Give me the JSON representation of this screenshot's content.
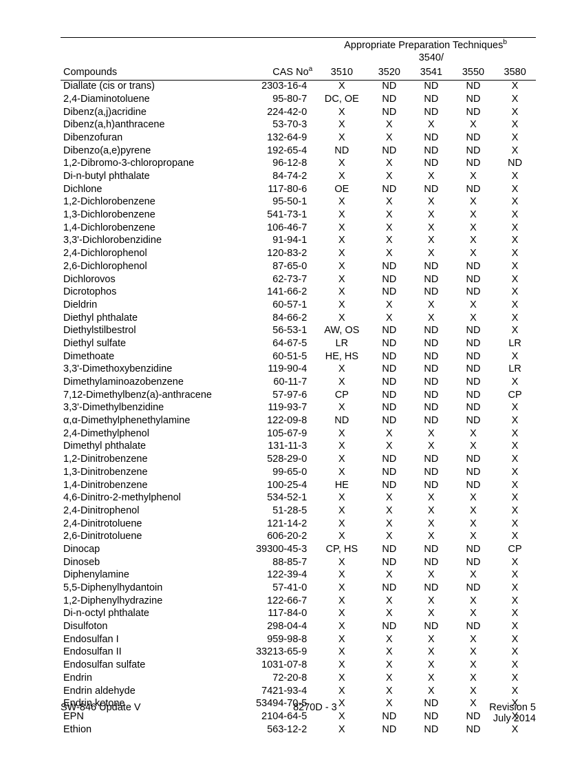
{
  "header": {
    "group_title": "Appropriate Preparation Techniques",
    "group_sup": "b",
    "compounds_label": "Compounds",
    "cas_label": "CAS No",
    "cas_sup": "a",
    "col_3510": "3510",
    "col_3520": "3520",
    "col_3540_top": "3540/",
    "col_3540_bot": "3541",
    "col_3550": "3550",
    "col_3580": "3580"
  },
  "rows": [
    {
      "c": "Diallate (cis or trans)",
      "cas": "2303-16-4",
      "v": [
        "X",
        "ND",
        "ND",
        "ND",
        "X"
      ]
    },
    {
      "c": "2,4-Diaminotoluene",
      "cas": "95-80-7",
      "v": [
        "DC, OE",
        "ND",
        "ND",
        "ND",
        "X"
      ]
    },
    {
      "c": "Dibenz(a,j)acridine",
      "cas": "224-42-0",
      "v": [
        "X",
        "ND",
        "ND",
        "ND",
        "X"
      ]
    },
    {
      "c": "Dibenz(a,h)anthracene",
      "cas": "53-70-3",
      "v": [
        "X",
        "X",
        "X",
        "X",
        "X"
      ]
    },
    {
      "c": "Dibenzofuran",
      "cas": "132-64-9",
      "v": [
        "X",
        "X",
        "ND",
        "ND",
        "X"
      ]
    },
    {
      "c": "Dibenzo(a,e)pyrene",
      "cas": "192-65-4",
      "v": [
        "ND",
        "ND",
        "ND",
        "ND",
        "X"
      ]
    },
    {
      "c": "1,2-Dibromo-3-chloropropane",
      "cas": "96-12-8",
      "v": [
        "X",
        "X",
        "ND",
        "ND",
        "ND"
      ]
    },
    {
      "c": "Di-n-butyl phthalate",
      "cas": "84-74-2",
      "v": [
        "X",
        "X",
        "X",
        "X",
        "X"
      ]
    },
    {
      "c": "Dichlone",
      "cas": "117-80-6",
      "v": [
        "OE",
        "ND",
        "ND",
        "ND",
        "X"
      ]
    },
    {
      "c": "1,2-Dichlorobenzene",
      "cas": "95-50-1",
      "v": [
        "X",
        "X",
        "X",
        "X",
        "X"
      ]
    },
    {
      "c": "1,3-Dichlorobenzene",
      "cas": "541-73-1",
      "v": [
        "X",
        "X",
        "X",
        "X",
        "X"
      ]
    },
    {
      "c": "1,4-Dichlorobenzene",
      "cas": "106-46-7",
      "v": [
        "X",
        "X",
        "X",
        "X",
        "X"
      ]
    },
    {
      "c": "3,3'-Dichlorobenzidine",
      "cas": "91-94-1",
      "v": [
        "X",
        "X",
        "X",
        "X",
        "X"
      ]
    },
    {
      "c": "2,4-Dichlorophenol",
      "cas": "120-83-2",
      "v": [
        "X",
        "X",
        "X",
        "X",
        "X"
      ]
    },
    {
      "c": "2,6-Dichlorophenol",
      "cas": "87-65-0",
      "v": [
        "X",
        "ND",
        "ND",
        "ND",
        "X"
      ]
    },
    {
      "c": "Dichlorovos",
      "cas": "62-73-7",
      "v": [
        "X",
        "ND",
        "ND",
        "ND",
        "X"
      ]
    },
    {
      "c": "Dicrotophos",
      "cas": "141-66-2",
      "v": [
        "X",
        "ND",
        "ND",
        "ND",
        "X"
      ]
    },
    {
      "c": "Dieldrin",
      "cas": "60-57-1",
      "v": [
        "X",
        "X",
        "X",
        "X",
        "X"
      ]
    },
    {
      "c": "Diethyl phthalate",
      "cas": "84-66-2",
      "v": [
        "X",
        "X",
        "X",
        "X",
        "X"
      ]
    },
    {
      "c": "Diethylstilbestrol",
      "cas": "56-53-1",
      "v": [
        "AW, OS",
        "ND",
        "ND",
        "ND",
        "X"
      ]
    },
    {
      "c": "Diethyl sulfate",
      "cas": "64-67-5",
      "v": [
        "LR",
        "ND",
        "ND",
        "ND",
        "LR"
      ]
    },
    {
      "c": "Dimethoate",
      "cas": "60-51-5",
      "v": [
        "HE, HS",
        "ND",
        "ND",
        "ND",
        "X"
      ]
    },
    {
      "c": "3,3'-Dimethoxybenzidine",
      "cas": "119-90-4",
      "v": [
        "X",
        "ND",
        "ND",
        "ND",
        "LR"
      ]
    },
    {
      "c": "Dimethylaminoazobenzene",
      "cas": "60-11-7",
      "v": [
        "X",
        "ND",
        "ND",
        "ND",
        "X"
      ]
    },
    {
      "c": "7,12-Dimethylbenz(a)-anthracene",
      "cas": "57-97-6",
      "v": [
        "CP",
        "ND",
        "ND",
        "ND",
        "CP"
      ]
    },
    {
      "c": "3,3'-Dimethylbenzidine",
      "cas": "119-93-7",
      "v": [
        "X",
        "ND",
        "ND",
        "ND",
        "X"
      ]
    },
    {
      "c": "α,α-Dimethylphenethylamine",
      "cas": "122-09-8",
      "v": [
        "ND",
        "ND",
        "ND",
        "ND",
        "X"
      ]
    },
    {
      "c": "2,4-Dimethylphenol",
      "cas": "105-67-9",
      "v": [
        "X",
        "X",
        "X",
        "X",
        "X"
      ]
    },
    {
      "c": "Dimethyl phthalate",
      "cas": "131-11-3",
      "v": [
        "X",
        "X",
        "X",
        "X",
        "X"
      ]
    },
    {
      "c": "1,2-Dinitrobenzene",
      "cas": "528-29-0",
      "v": [
        "X",
        "ND",
        "ND",
        "ND",
        "X"
      ]
    },
    {
      "c": "1,3-Dinitrobenzene",
      "cas": "99-65-0",
      "v": [
        "X",
        "ND",
        "ND",
        "ND",
        "X"
      ]
    },
    {
      "c": "1,4-Dinitrobenzene",
      "cas": "100-25-4",
      "v": [
        "HE",
        "ND",
        "ND",
        "ND",
        "X"
      ]
    },
    {
      "c": "4,6-Dinitro-2-methylphenol",
      "cas": "534-52-1",
      "v": [
        "X",
        "X",
        "X",
        "X",
        "X"
      ]
    },
    {
      "c": "2,4-Dinitrophenol",
      "cas": "51-28-5",
      "v": [
        "X",
        "X",
        "X",
        "X",
        "X"
      ]
    },
    {
      "c": "2,4-Dinitrotoluene",
      "cas": "121-14-2",
      "v": [
        "X",
        "X",
        "X",
        "X",
        "X"
      ]
    },
    {
      "c": "2,6-Dinitrotoluene",
      "cas": "606-20-2",
      "v": [
        "X",
        "X",
        "X",
        "X",
        "X"
      ]
    },
    {
      "c": "Dinocap",
      "cas": "39300-45-3",
      "v": [
        "CP, HS",
        "ND",
        "ND",
        "ND",
        "CP"
      ]
    },
    {
      "c": "Dinoseb",
      "cas": "88-85-7",
      "v": [
        "X",
        "ND",
        "ND",
        "ND",
        "X"
      ]
    },
    {
      "c": "Diphenylamine",
      "cas": "122-39-4",
      "v": [
        "X",
        "X",
        "X",
        "X",
        "X"
      ]
    },
    {
      "c": "5,5-Diphenylhydantoin",
      "cas": "57-41-0",
      "v": [
        "X",
        "ND",
        "ND",
        "ND",
        "X"
      ]
    },
    {
      "c": "1,2-Diphenylhydrazine",
      "cas": "122-66-7",
      "v": [
        "X",
        "X",
        "X",
        "X",
        "X"
      ]
    },
    {
      "c": "Di-n-octyl phthalate",
      "cas": "117-84-0",
      "v": [
        "X",
        "X",
        "X",
        "X",
        "X"
      ]
    },
    {
      "c": "Disulfoton",
      "cas": "298-04-4",
      "v": [
        "X",
        "ND",
        "ND",
        "ND",
        "X"
      ]
    },
    {
      "c": "Endosulfan I",
      "cas": "959-98-8",
      "v": [
        "X",
        "X",
        "X",
        "X",
        "X"
      ]
    },
    {
      "c": "Endosulfan II",
      "cas": "33213-65-9",
      "v": [
        "X",
        "X",
        "X",
        "X",
        "X"
      ]
    },
    {
      "c": "Endosulfan sulfate",
      "cas": "1031-07-8",
      "v": [
        "X",
        "X",
        "X",
        "X",
        "X"
      ]
    },
    {
      "c": "Endrin",
      "cas": "72-20-8",
      "v": [
        "X",
        "X",
        "X",
        "X",
        "X"
      ]
    },
    {
      "c": "Endrin aldehyde",
      "cas": "7421-93-4",
      "v": [
        "X",
        "X",
        "X",
        "X",
        "X"
      ]
    },
    {
      "c": "Endrin ketone",
      "cas": "53494-70-5",
      "v": [
        "X",
        "X",
        "ND",
        "X",
        "X"
      ]
    },
    {
      "c": "EPN",
      "cas": "2104-64-5",
      "v": [
        "X",
        "ND",
        "ND",
        "ND",
        "X"
      ]
    },
    {
      "c": "Ethion",
      "cas": "563-12-2",
      "v": [
        "X",
        "ND",
        "ND",
        "ND",
        "X"
      ]
    }
  ],
  "footer": {
    "left": "SW-846 Update V",
    "center": "8270D - 3",
    "right_top": "Revision 5",
    "right_bot": "July 2014"
  }
}
